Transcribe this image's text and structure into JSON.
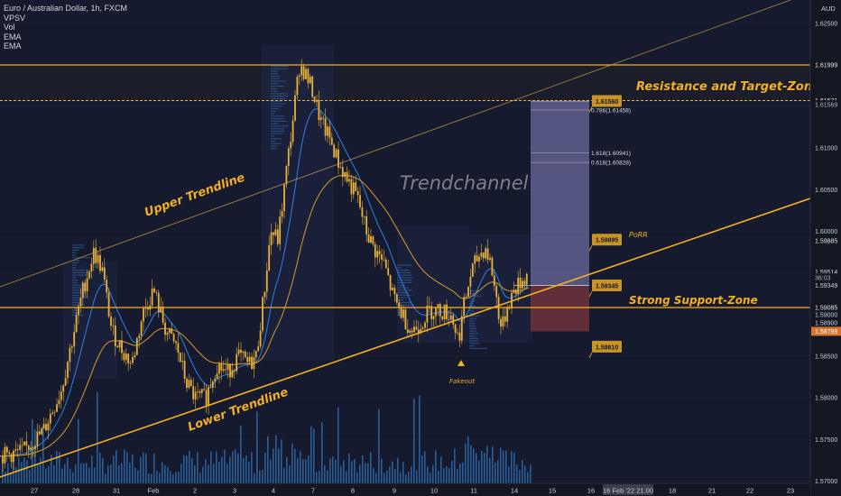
{
  "legend": {
    "title": "Euro / Australian Dollar, 1h, FXCM",
    "items": [
      "VPSV",
      "Vol",
      "EMA",
      "EMA"
    ]
  },
  "colors": {
    "background": "#131722",
    "candle": "#e8b13a",
    "annotation": "#f2b022",
    "ema_fast": "#2a79d6",
    "ema_slow": "#c7902a",
    "volume": "#2d6aa8",
    "target_box": "#8b86c8",
    "stop_box": "#c24848"
  },
  "axis": {
    "currency": "AUD",
    "y_ticks": [
      "1.62500",
      "1.62000",
      "1.61500",
      "1.61000",
      "1.60500",
      "1.60000",
      "1.59500",
      "1.59000",
      "1.58500",
      "1.58000",
      "1.57500",
      "1.57000"
    ],
    "x_ticks": [
      "27",
      "28",
      "31",
      "Feb",
      "2",
      "3",
      "4",
      "7",
      "8",
      "9",
      "10",
      "11",
      "14",
      "15",
      "16",
      "18",
      "21",
      "22",
      "23"
    ],
    "cursor_date": "16 Feb '22 21:00"
  },
  "price_labels": [
    {
      "text": "1.61999",
      "price": 1.61999,
      "style": "dark"
    },
    {
      "text": "1.61571",
      "price": 1.61571,
      "style": "dark"
    },
    {
      "text": "1.61569",
      "price": 1.6152,
      "style": "small"
    },
    {
      "text": "1.59885",
      "price": 1.59885,
      "style": "dark"
    },
    {
      "text": "1.59514",
      "price": 1.59514,
      "style": "plain"
    },
    {
      "text": "36:03",
      "price": 1.5944,
      "style": "small"
    },
    {
      "text": "1.59349",
      "price": 1.59349,
      "style": "plain"
    },
    {
      "text": "1.59085",
      "price": 1.59085,
      "style": "dark"
    },
    {
      "text": "1.58900",
      "price": 1.589,
      "style": "plain"
    },
    {
      "text": "1.58799",
      "price": 1.58799,
      "style": "orange"
    }
  ],
  "annotations": {
    "upper_trendline": "Upper Trendline",
    "lower_trendline": "Lower Trendline",
    "resistance": "Resistance and Target-Zone",
    "support": "Strong Support-Zone",
    "channel": "Trendchannel",
    "porr": "PoRR",
    "fakeout": "Fakeout"
  },
  "fib_labels": [
    "1.61558",
    "0.786(1.61458)",
    "1.618(1.60941)",
    "0.618(1.60828)"
  ],
  "callouts": [
    "1.61560",
    "1.59895",
    "1.59345",
    "1.58610"
  ],
  "chart_data": {
    "type": "candlestick",
    "title": "Euro / Australian Dollar, 1h, FXCM",
    "ylim": [
      1.569,
      1.63
    ],
    "resistance_levels": [
      1.61999,
      1.61571
    ],
    "support_level": 1.59085,
    "position": {
      "entry": 1.59349,
      "target": 1.61571,
      "stop": 1.58799
    },
    "close_path": [
      [
        0,
        1.573
      ],
      [
        25,
        1.5735
      ],
      [
        48,
        1.576
      ],
      [
        68,
        1.581
      ],
      [
        80,
        1.587
      ],
      [
        92,
        1.593
      ],
      [
        104,
        1.5975
      ],
      [
        113,
        1.5955
      ],
      [
        124,
        1.588
      ],
      [
        134,
        1.586
      ],
      [
        146,
        1.584
      ],
      [
        158,
        1.59
      ],
      [
        170,
        1.593
      ],
      [
        184,
        1.588
      ],
      [
        196,
        1.586
      ],
      [
        206,
        1.582
      ],
      [
        216,
        1.58
      ],
      [
        228,
        1.58
      ],
      [
        240,
        1.584
      ],
      [
        252,
        1.583
      ],
      [
        264,
        1.585
      ],
      [
        276,
        1.584
      ],
      [
        284,
        1.585
      ],
      [
        292,
        1.592
      ],
      [
        300,
        1.6
      ],
      [
        308,
        1.599
      ],
      [
        316,
        1.606
      ],
      [
        324,
        1.613
      ],
      [
        332,
        1.62
      ],
      [
        338,
        1.619
      ],
      [
        346,
        1.617
      ],
      [
        356,
        1.613
      ],
      [
        366,
        1.611
      ],
      [
        376,
        1.608
      ],
      [
        386,
        1.606
      ],
      [
        396,
        1.604
      ],
      [
        406,
        1.6
      ],
      [
        414,
        1.598
      ],
      [
        426,
        1.596
      ],
      [
        436,
        1.592
      ],
      [
        446,
        1.59
      ],
      [
        456,
        1.588
      ],
      [
        466,
        1.589
      ],
      [
        476,
        1.5905
      ],
      [
        488,
        1.5905
      ],
      [
        500,
        1.59
      ],
      [
        508,
        1.587
      ],
      [
        514,
        1.591
      ],
      [
        522,
        1.595
      ],
      [
        530,
        1.597
      ],
      [
        538,
        1.598
      ],
      [
        544,
        1.596
      ],
      [
        550,
        1.592
      ],
      [
        556,
        1.588
      ],
      [
        562,
        1.591
      ],
      [
        570,
        1.593
      ],
      [
        578,
        1.594
      ],
      [
        586,
        1.595
      ]
    ]
  }
}
